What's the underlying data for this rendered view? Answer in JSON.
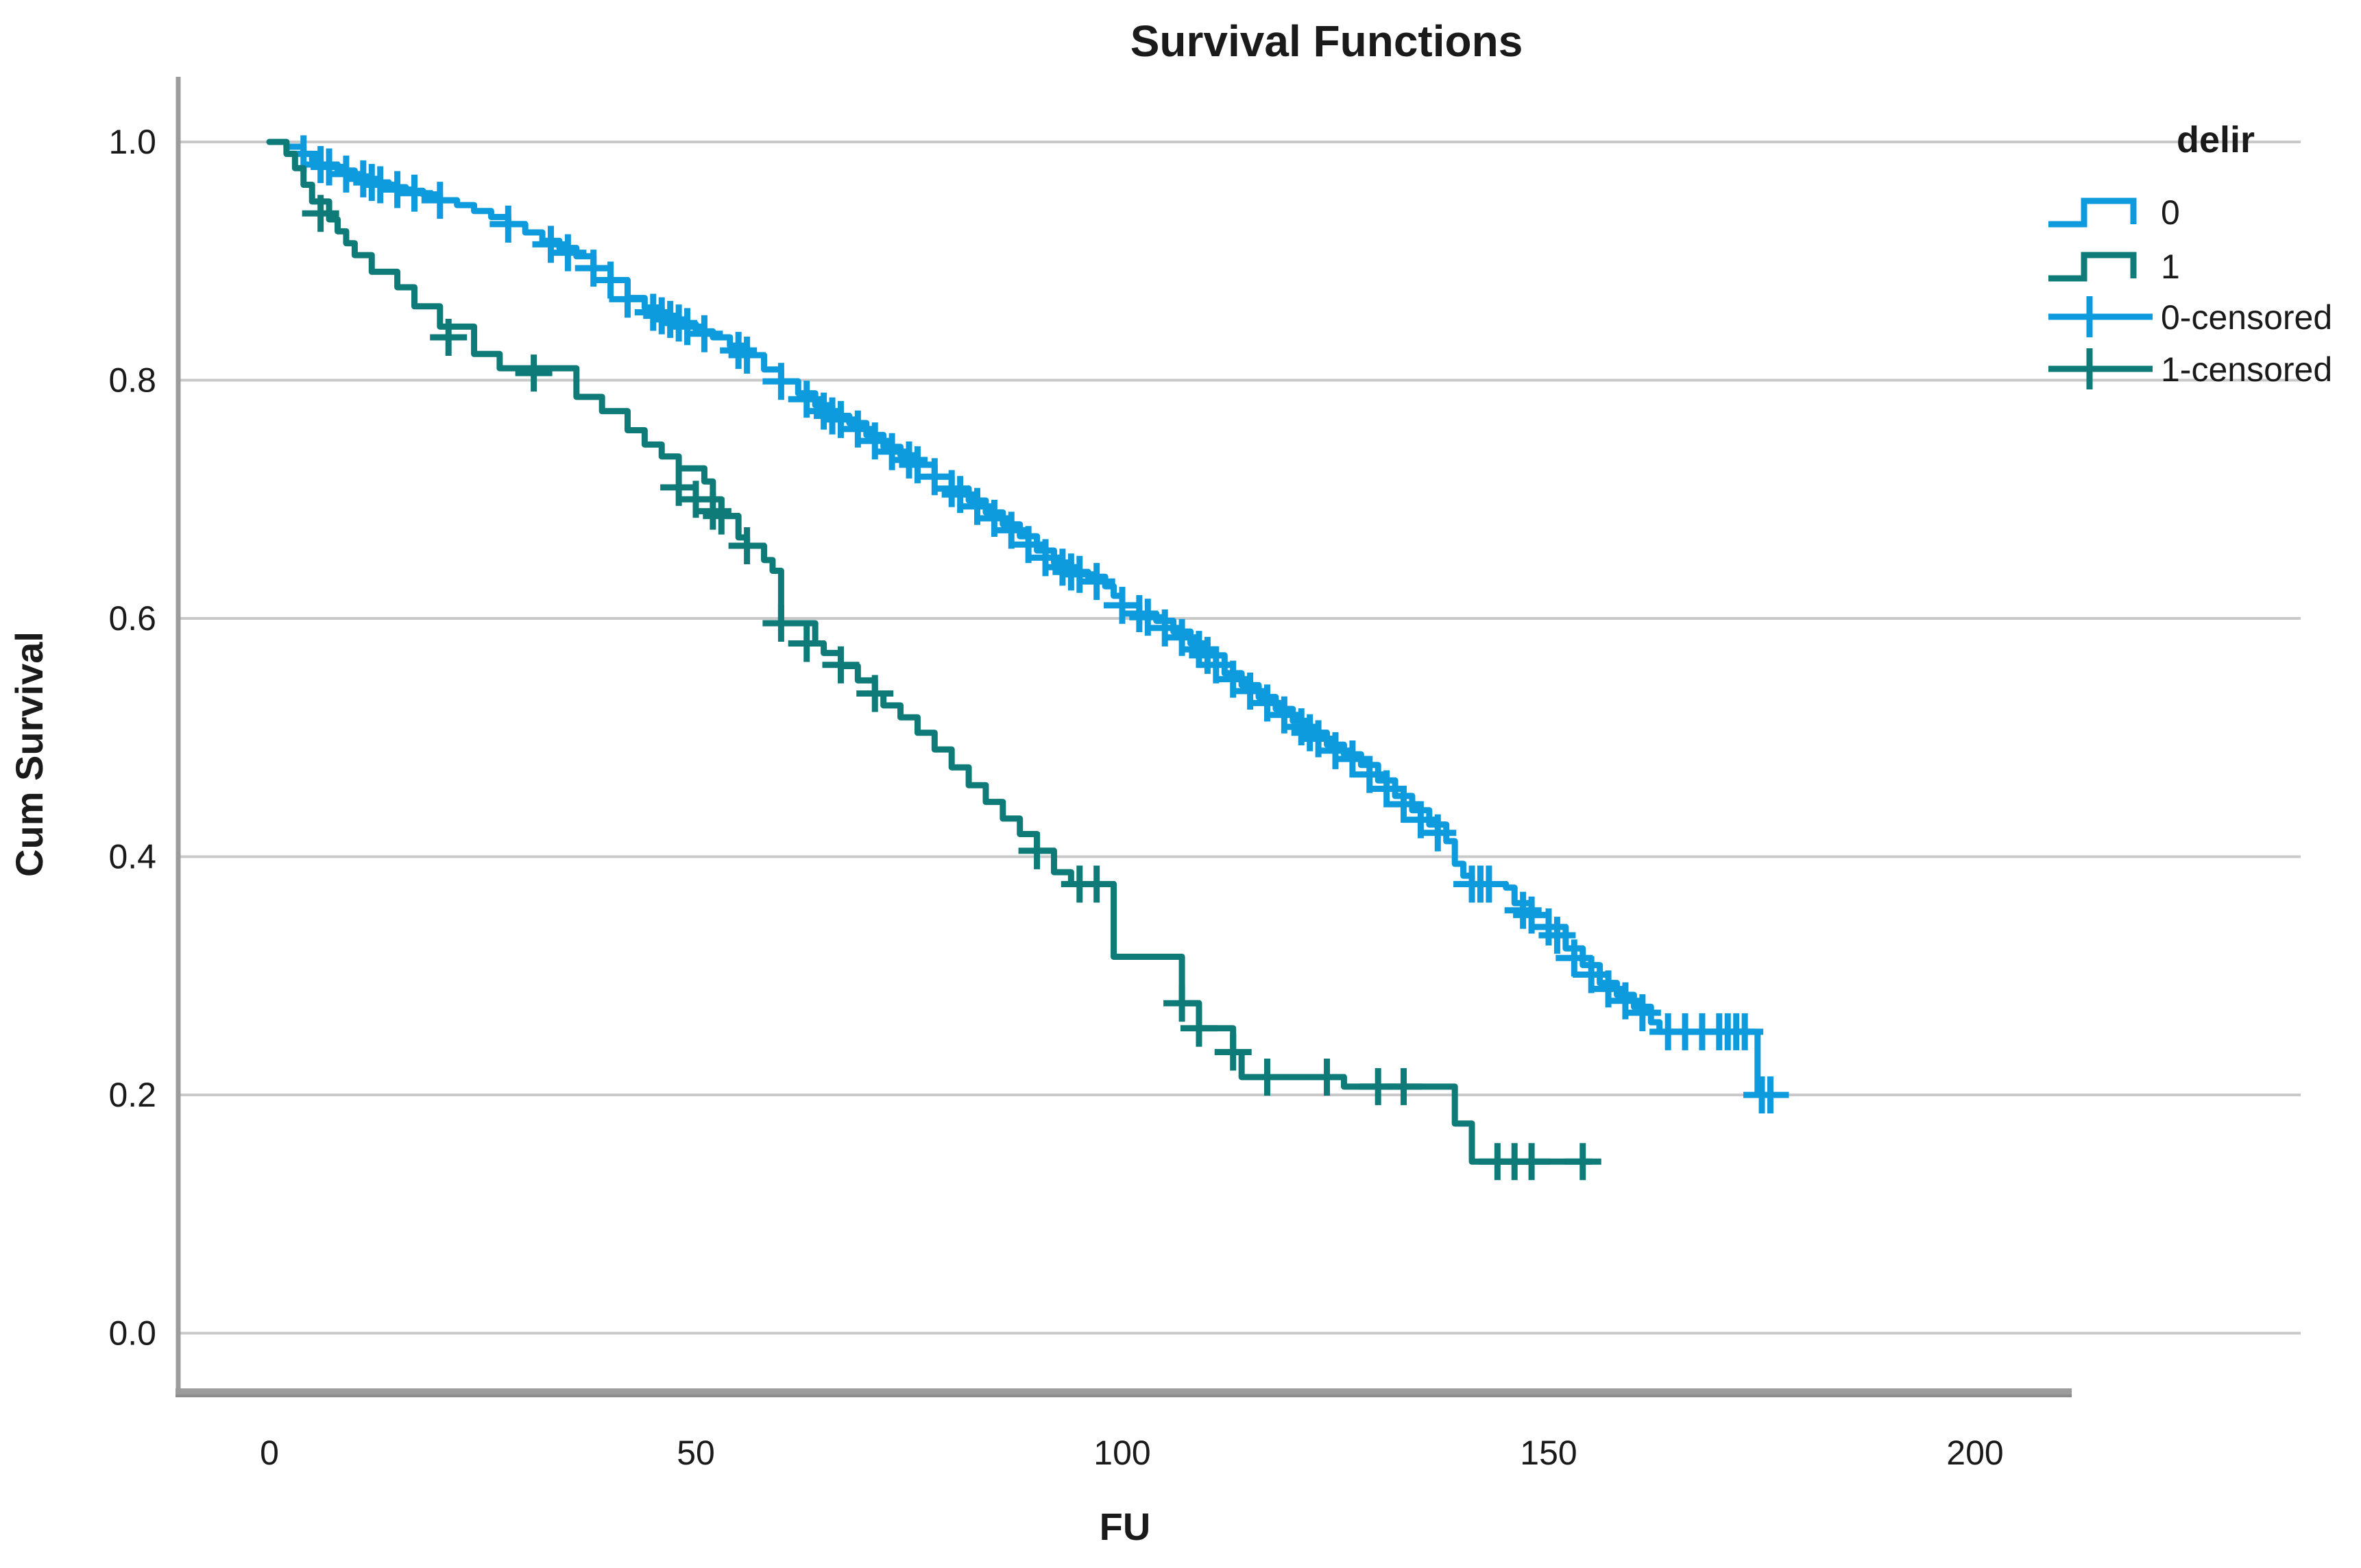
{
  "title": "Survival Functions",
  "axes": {
    "x_label": "FU",
    "y_label": "Cum Survival",
    "x_ticks": [
      "0",
      "50",
      "100",
      "150",
      "200"
    ],
    "x_tick_values": [
      0,
      50,
      100,
      150,
      200
    ],
    "y_ticks": [
      "1.0",
      "0.8",
      "0.6",
      "0.4",
      "0.2",
      "0.0"
    ],
    "y_tick_values": [
      1.0,
      0.8,
      0.6,
      0.4,
      0.2,
      0.0
    ]
  },
  "legend": {
    "title": "delir",
    "items": [
      {
        "label": "0",
        "type": "step",
        "color": "#0d9bde"
      },
      {
        "label": "1",
        "type": "step",
        "color": "#0f7b78"
      },
      {
        "label": "0-censored",
        "type": "censor",
        "color": "#0d9bde"
      },
      {
        "label": "1-censored",
        "type": "censor",
        "color": "#0f7b78"
      }
    ]
  },
  "colors": {
    "series0": "#0d9bde",
    "series1": "#0f7b78",
    "gridline": "#c9c9c9",
    "axis": "#9c9c9c",
    "axis_shadow": "#8c8c8c",
    "text": "#1a1a1a"
  },
  "chart_data": {
    "type": "line",
    "title": "Survival Functions",
    "xlabel": "FU",
    "ylabel": "Cum Survival",
    "xlim": [
      0,
      200
    ],
    "ylim": [
      0.0,
      1.0
    ],
    "grid": "horizontal",
    "legend_position": "right",
    "legend_title": "delir",
    "series": [
      {
        "name": "0",
        "color": "#0d9bde",
        "step": true,
        "points": [
          [
            0,
            1.0
          ],
          [
            2,
            0.996
          ],
          [
            4,
            0.99
          ],
          [
            5,
            0.985
          ],
          [
            6,
            0.981
          ],
          [
            8,
            0.976
          ],
          [
            10,
            0.971
          ],
          [
            12,
            0.966
          ],
          [
            14,
            0.962
          ],
          [
            16,
            0.959
          ],
          [
            18,
            0.956
          ],
          [
            20,
            0.951
          ],
          [
            22,
            0.947
          ],
          [
            24,
            0.942
          ],
          [
            26,
            0.937
          ],
          [
            28,
            0.931
          ],
          [
            30,
            0.924
          ],
          [
            32,
            0.917
          ],
          [
            34,
            0.911
          ],
          [
            36,
            0.904
          ],
          [
            38,
            0.894
          ],
          [
            40,
            0.884
          ],
          [
            42,
            0.869
          ],
          [
            44,
            0.861
          ],
          [
            46,
            0.854
          ],
          [
            48,
            0.847
          ],
          [
            50,
            0.841
          ],
          [
            52,
            0.836
          ],
          [
            54,
            0.829
          ],
          [
            56,
            0.821
          ],
          [
            58,
            0.809
          ],
          [
            60,
            0.799
          ],
          [
            62,
            0.789
          ],
          [
            64,
            0.779
          ],
          [
            66,
            0.77
          ],
          [
            68,
            0.764
          ],
          [
            70,
            0.754
          ],
          [
            72,
            0.744
          ],
          [
            74,
            0.737
          ],
          [
            76,
            0.729
          ],
          [
            78,
            0.719
          ],
          [
            80,
            0.709
          ],
          [
            82,
            0.699
          ],
          [
            84,
            0.689
          ],
          [
            86,
            0.679
          ],
          [
            88,
            0.669
          ],
          [
            90,
            0.657
          ],
          [
            92,
            0.647
          ],
          [
            94,
            0.639
          ],
          [
            96,
            0.635
          ],
          [
            98,
            0.627
          ],
          [
            99,
            0.619
          ],
          [
            100,
            0.611
          ],
          [
            102,
            0.604
          ],
          [
            104,
            0.598
          ],
          [
            106,
            0.589
          ],
          [
            108,
            0.579
          ],
          [
            110,
            0.569
          ],
          [
            112,
            0.554
          ],
          [
            114,
            0.544
          ],
          [
            116,
            0.534
          ],
          [
            118,
            0.524
          ],
          [
            120,
            0.514
          ],
          [
            122,
            0.504
          ],
          [
            124,
            0.494
          ],
          [
            126,
            0.486
          ],
          [
            128,
            0.477
          ],
          [
            130,
            0.464
          ],
          [
            132,
            0.451
          ],
          [
            134,
            0.439
          ],
          [
            136,
            0.427
          ],
          [
            138,
            0.413
          ],
          [
            139,
            0.394
          ],
          [
            140,
            0.384
          ],
          [
            141,
            0.377
          ],
          [
            145,
            0.374
          ],
          [
            146,
            0.361
          ],
          [
            148,
            0.351
          ],
          [
            150,
            0.341
          ],
          [
            152,
            0.323
          ],
          [
            154,
            0.309
          ],
          [
            156,
            0.294
          ],
          [
            158,
            0.284
          ],
          [
            160,
            0.274
          ],
          [
            162,
            0.261
          ],
          [
            163,
            0.253
          ],
          [
            174,
            0.253
          ],
          [
            174.5,
            0.2
          ],
          [
            177,
            0.2
          ]
        ],
        "censored": [
          [
            4,
            0.99
          ],
          [
            6,
            0.981
          ],
          [
            7,
            0.979
          ],
          [
            9,
            0.973
          ],
          [
            11,
            0.969
          ],
          [
            12,
            0.966
          ],
          [
            13,
            0.964
          ],
          [
            15,
            0.96
          ],
          [
            17,
            0.957
          ],
          [
            20,
            0.951
          ],
          [
            28,
            0.931
          ],
          [
            33,
            0.914
          ],
          [
            35,
            0.907
          ],
          [
            38,
            0.894
          ],
          [
            40,
            0.884
          ],
          [
            42,
            0.868
          ],
          [
            45,
            0.857
          ],
          [
            46,
            0.854
          ],
          [
            47,
            0.851
          ],
          [
            48,
            0.848
          ],
          [
            49,
            0.845
          ],
          [
            51,
            0.839
          ],
          [
            55,
            0.825
          ],
          [
            56,
            0.821
          ],
          [
            60,
            0.799
          ],
          [
            63,
            0.784
          ],
          [
            65,
            0.774
          ],
          [
            66,
            0.77
          ],
          [
            67,
            0.767
          ],
          [
            69,
            0.759
          ],
          [
            71,
            0.749
          ],
          [
            73,
            0.74
          ],
          [
            75,
            0.733
          ],
          [
            76,
            0.729
          ],
          [
            78,
            0.719
          ],
          [
            80,
            0.709
          ],
          [
            81,
            0.704
          ],
          [
            83,
            0.694
          ],
          [
            85,
            0.684
          ],
          [
            87,
            0.674
          ],
          [
            89,
            0.662
          ],
          [
            91,
            0.651
          ],
          [
            93,
            0.643
          ],
          [
            94,
            0.639
          ],
          [
            95,
            0.637
          ],
          [
            97,
            0.631
          ],
          [
            100,
            0.611
          ],
          [
            102,
            0.604
          ],
          [
            103,
            0.601
          ],
          [
            105,
            0.592
          ],
          [
            107,
            0.584
          ],
          [
            109,
            0.574
          ],
          [
            110,
            0.569
          ],
          [
            111,
            0.561
          ],
          [
            113,
            0.549
          ],
          [
            115,
            0.539
          ],
          [
            117,
            0.529
          ],
          [
            119,
            0.519
          ],
          [
            121,
            0.509
          ],
          [
            122,
            0.504
          ],
          [
            123,
            0.499
          ],
          [
            125,
            0.489
          ],
          [
            127,
            0.482
          ],
          [
            129,
            0.469
          ],
          [
            131,
            0.457
          ],
          [
            133,
            0.444
          ],
          [
            135,
            0.431
          ],
          [
            137,
            0.42
          ],
          [
            141,
            0.377
          ],
          [
            142,
            0.377
          ],
          [
            143,
            0.377
          ],
          [
            147,
            0.355
          ],
          [
            148,
            0.351
          ],
          [
            150,
            0.341
          ],
          [
            151,
            0.334
          ],
          [
            153,
            0.315
          ],
          [
            155,
            0.301
          ],
          [
            157,
            0.289
          ],
          [
            159,
            0.279
          ],
          [
            161,
            0.269
          ],
          [
            164,
            0.253
          ],
          [
            166,
            0.253
          ],
          [
            168,
            0.253
          ],
          [
            170,
            0.253
          ],
          [
            171,
            0.253
          ],
          [
            172,
            0.253
          ],
          [
            173,
            0.253
          ],
          [
            175,
            0.2
          ],
          [
            176,
            0.2
          ]
        ]
      },
      {
        "name": "1",
        "color": "#0f7b78",
        "step": true,
        "points": [
          [
            0,
            1.0
          ],
          [
            2,
            0.99
          ],
          [
            3,
            0.978
          ],
          [
            4,
            0.964
          ],
          [
            5,
            0.95
          ],
          [
            7,
            0.935
          ],
          [
            8,
            0.925
          ],
          [
            9,
            0.915
          ],
          [
            10,
            0.905
          ],
          [
            12,
            0.891
          ],
          [
            15,
            0.878
          ],
          [
            17,
            0.862
          ],
          [
            20,
            0.845
          ],
          [
            24,
            0.822
          ],
          [
            27,
            0.81
          ],
          [
            36,
            0.786
          ],
          [
            39,
            0.774
          ],
          [
            42,
            0.758
          ],
          [
            44,
            0.746
          ],
          [
            46,
            0.736
          ],
          [
            48,
            0.726
          ],
          [
            51,
            0.715
          ],
          [
            52,
            0.7
          ],
          [
            53,
            0.686
          ],
          [
            55,
            0.668
          ],
          [
            56,
            0.661
          ],
          [
            58,
            0.649
          ],
          [
            59,
            0.64
          ],
          [
            60,
            0.596
          ],
          [
            64,
            0.579
          ],
          [
            65,
            0.571
          ],
          [
            67,
            0.56
          ],
          [
            69,
            0.548
          ],
          [
            71,
            0.537
          ],
          [
            72,
            0.527
          ],
          [
            74,
            0.517
          ],
          [
            76,
            0.504
          ],
          [
            78,
            0.49
          ],
          [
            80,
            0.475
          ],
          [
            82,
            0.46
          ],
          [
            84,
            0.446
          ],
          [
            86,
            0.432
          ],
          [
            88,
            0.419
          ],
          [
            90,
            0.405
          ],
          [
            92,
            0.387
          ],
          [
            94,
            0.377
          ],
          [
            99,
            0.316
          ],
          [
            107,
            0.277
          ],
          [
            109,
            0.256
          ],
          [
            113,
            0.236
          ],
          [
            114,
            0.215
          ],
          [
            126,
            0.207
          ],
          [
            139,
            0.176
          ],
          [
            141,
            0.144
          ],
          [
            155,
            0.144
          ]
        ],
        "censored": [
          [
            6,
            0.94
          ],
          [
            21,
            0.836
          ],
          [
            31,
            0.806
          ],
          [
            48,
            0.71
          ],
          [
            50,
            0.7
          ],
          [
            52,
            0.69
          ],
          [
            53,
            0.686
          ],
          [
            56,
            0.661
          ],
          [
            60,
            0.596
          ],
          [
            63,
            0.579
          ],
          [
            67,
            0.561
          ],
          [
            71,
            0.537
          ],
          [
            90,
            0.405
          ],
          [
            95,
            0.377
          ],
          [
            97,
            0.377
          ],
          [
            107,
            0.277
          ],
          [
            109,
            0.256
          ],
          [
            113,
            0.236
          ],
          [
            117,
            0.215
          ],
          [
            124,
            0.215
          ],
          [
            130,
            0.207
          ],
          [
            133,
            0.207
          ],
          [
            144,
            0.144
          ],
          [
            146,
            0.144
          ],
          [
            148,
            0.144
          ],
          [
            154,
            0.144
          ]
        ]
      }
    ]
  }
}
